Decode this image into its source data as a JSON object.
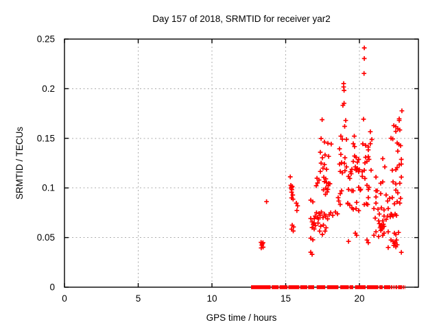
{
  "background_color": "#ffffff",
  "chart_data": {
    "type": "scatter",
    "title": "Day 157 of 2018, SRMTID for receiver yar2",
    "xlabel": "GPS time / hours",
    "ylabel": "SRMTID / TECUs",
    "xlim": [
      0,
      24
    ],
    "ylim": [
      0,
      0.25
    ],
    "xticks": [
      0,
      5,
      10,
      15,
      20
    ],
    "xtick_labels": [
      "0",
      "5",
      "10",
      "15",
      "20"
    ],
    "yticks": [
      0,
      0.05,
      0.1,
      0.15,
      0.2,
      0.25
    ],
    "ytick_labels": [
      "0",
      "0.05",
      "0.1",
      "0.15",
      "0.2",
      "0.25"
    ],
    "grid": true,
    "legend": "none",
    "frame_color": "#000000",
    "grid_color": "#ababab",
    "series": [
      {
        "name": "SRMTID",
        "marker": "plus",
        "marker_size_px": 7,
        "color": "#ff0000",
        "points": [
          [
            13.33,
            0.0452
          ],
          [
            13.46,
            0.0448
          ],
          [
            13.38,
            0.0424
          ],
          [
            13.34,
            0.0396
          ],
          [
            13.47,
            0.0403
          ],
          [
            13.41,
            0.0438
          ],
          [
            13.7,
            0.0862
          ],
          [
            15.31,
            0.1112
          ],
          [
            15.35,
            0.1026
          ],
          [
            15.44,
            0.1015
          ],
          [
            15.4,
            0.1008
          ],
          [
            15.37,
            0.0997
          ],
          [
            15.42,
            0.0983
          ],
          [
            15.4,
            0.0957
          ],
          [
            15.48,
            0.0929
          ],
          [
            15.4,
            0.09
          ],
          [
            15.5,
            0.0887
          ],
          [
            15.44,
            0.0625
          ],
          [
            15.53,
            0.0607
          ],
          [
            15.4,
            0.0585
          ],
          [
            15.51,
            0.0566
          ],
          [
            15.72,
            0.0847
          ],
          [
            15.81,
            0.082
          ],
          [
            15.76,
            0.0772
          ],
          [
            16.79,
            0.0659
          ],
          [
            16.93,
            0.0648
          ],
          [
            16.86,
            0.0633
          ],
          [
            17.02,
            0.062
          ],
          [
            16.79,
            0.0601
          ],
          [
            16.93,
            0.0586
          ],
          [
            16.7,
            0.0494
          ],
          [
            16.84,
            0.0477
          ],
          [
            16.7,
            0.0352
          ],
          [
            16.79,
            0.0331
          ],
          [
            16.7,
            0.0877
          ],
          [
            16.84,
            0.086
          ],
          [
            16.7,
            0.0693
          ],
          [
            16.93,
            0.069
          ],
          [
            17.12,
            0.1098
          ],
          [
            17.26,
            0.108
          ],
          [
            17.16,
            0.105
          ],
          [
            17.07,
            0.1022
          ],
          [
            17.4,
            0.125
          ],
          [
            17.63,
            0.1235
          ],
          [
            17.53,
            0.1199
          ],
          [
            17.77,
            0.1188
          ],
          [
            17.35,
            0.1166
          ],
          [
            17.58,
            0.1108
          ],
          [
            17.72,
            0.1091
          ],
          [
            17.63,
            0.1064
          ],
          [
            17.47,
            0.1688
          ],
          [
            17.4,
            0.1498
          ],
          [
            17.63,
            0.1463
          ],
          [
            17.86,
            0.145
          ],
          [
            18.09,
            0.1442
          ],
          [
            17.35,
            0.136
          ],
          [
            17.67,
            0.1332
          ],
          [
            17.91,
            0.1318
          ],
          [
            17.49,
            0.1304
          ],
          [
            17.77,
            0.1053
          ],
          [
            17.91,
            0.1046
          ],
          [
            18.0,
            0.1042
          ],
          [
            17.88,
            0.1022
          ],
          [
            17.72,
            0.0998
          ],
          [
            17.86,
            0.0985
          ],
          [
            17.56,
            0.0981
          ],
          [
            17.81,
            0.096
          ],
          [
            17.7,
            0.0936
          ],
          [
            17.0,
            0.0716
          ],
          [
            17.09,
            0.075
          ],
          [
            17.16,
            0.0702
          ],
          [
            17.26,
            0.0743
          ],
          [
            17.33,
            0.0723
          ],
          [
            17.42,
            0.0757
          ],
          [
            17.53,
            0.0702
          ],
          [
            17.63,
            0.0737
          ],
          [
            17.72,
            0.0716
          ],
          [
            17.84,
            0.0688
          ],
          [
            17.95,
            0.073
          ],
          [
            17.19,
            0.0646
          ],
          [
            17.37,
            0.0613
          ],
          [
            17.56,
            0.0626
          ],
          [
            17.74,
            0.0599
          ],
          [
            17.3,
            0.0565
          ],
          [
            17.49,
            0.0531
          ],
          [
            17.67,
            0.0565
          ],
          [
            17.23,
            0.0688
          ],
          [
            18.05,
            0.075
          ],
          [
            18.19,
            0.0723
          ],
          [
            18.93,
            0.2052
          ],
          [
            18.93,
            0.2018
          ],
          [
            18.96,
            0.1983
          ],
          [
            18.96,
            0.1853
          ],
          [
            18.88,
            0.1832
          ],
          [
            19.07,
            0.168
          ],
          [
            19.0,
            0.162
          ],
          [
            18.74,
            0.1522
          ],
          [
            18.84,
            0.149
          ],
          [
            19.12,
            0.1488
          ],
          [
            18.65,
            0.1394
          ],
          [
            18.74,
            0.1338
          ],
          [
            19.02,
            0.1304
          ],
          [
            18.79,
            0.125
          ],
          [
            19.12,
            0.1212
          ],
          [
            18.65,
            0.124
          ],
          [
            18.79,
            0.1255
          ],
          [
            18.98,
            0.1247
          ],
          [
            18.7,
            0.1166
          ],
          [
            18.84,
            0.1152
          ],
          [
            19.02,
            0.1173
          ],
          [
            19.4,
            0.1163
          ],
          [
            19.49,
            0.1188
          ],
          [
            19.44,
            0.1143
          ],
          [
            18.79,
            0.0971
          ],
          [
            18.7,
            0.0943
          ],
          [
            19.21,
            0.084
          ],
          [
            19.35,
            0.0826
          ],
          [
            18.37,
            0.0757
          ],
          [
            18.51,
            0.0739
          ],
          [
            18.6,
            0.0868
          ],
          [
            18.7,
            0.0833
          ],
          [
            18.56,
            0.0902
          ],
          [
            20.33,
            0.2411
          ],
          [
            20.33,
            0.2304
          ],
          [
            20.31,
            0.2153
          ],
          [
            20.28,
            0.1693
          ],
          [
            20.74,
            0.1566
          ],
          [
            19.65,
            0.1522
          ],
          [
            19.58,
            0.1446
          ],
          [
            19.67,
            0.1417
          ],
          [
            20.23,
            0.1444
          ],
          [
            20.42,
            0.1429
          ],
          [
            20.6,
            0.1412
          ],
          [
            20.74,
            0.1446
          ],
          [
            20.84,
            0.1488
          ],
          [
            20.6,
            0.1384
          ],
          [
            19.67,
            0.1322
          ],
          [
            19.77,
            0.1309
          ],
          [
            19.95,
            0.1288
          ],
          [
            19.58,
            0.1267
          ],
          [
            19.86,
            0.126
          ],
          [
            20.42,
            0.1309
          ],
          [
            20.6,
            0.1315
          ],
          [
            20.65,
            0.1288
          ],
          [
            20.51,
            0.1267
          ],
          [
            20.37,
            0.1253
          ],
          [
            19.72,
            0.1212
          ],
          [
            19.86,
            0.1198
          ],
          [
            20.0,
            0.1184
          ],
          [
            19.77,
            0.1178
          ],
          [
            19.95,
            0.1164
          ],
          [
            19.81,
            0.1191
          ],
          [
            20.79,
            0.1178
          ],
          [
            20.19,
            0.1164
          ],
          [
            20.33,
            0.1178
          ],
          [
            20.19,
            0.1116
          ],
          [
            20.37,
            0.1095
          ],
          [
            21.12,
            0.1109
          ],
          [
            20.51,
            0.1026
          ],
          [
            20.65,
            0.1006
          ],
          [
            19.95,
            0.1006
          ],
          [
            20.09,
            0.0985
          ],
          [
            21.12,
            0.0971
          ],
          [
            19.26,
            0.0985
          ],
          [
            19.35,
            0.1095
          ],
          [
            19.26,
            0.1116
          ],
          [
            19.49,
            0.0971
          ],
          [
            19.58,
            0.0971
          ],
          [
            20.05,
            0.0978
          ],
          [
            20.6,
            0.0985
          ],
          [
            20.6,
            0.0902
          ],
          [
            21.12,
            0.0909
          ],
          [
            19.21,
            0.0847
          ],
          [
            19.81,
            0.0854
          ],
          [
            20.33,
            0.0833
          ],
          [
            20.47,
            0.084
          ],
          [
            20.56,
            0.0833
          ],
          [
            21.12,
            0.0847
          ],
          [
            19.49,
            0.0799
          ],
          [
            19.58,
            0.0785
          ],
          [
            19.77,
            0.0792
          ],
          [
            19.95,
            0.0771
          ],
          [
            19.72,
            0.0544
          ],
          [
            19.81,
            0.0523
          ],
          [
            19.26,
            0.0461
          ],
          [
            20.51,
            0.0475
          ],
          [
            20.6,
            0.0448
          ],
          [
            20.98,
            0.0792
          ],
          [
            21.26,
            0.0785
          ],
          [
            21.49,
            0.0799
          ],
          [
            21.67,
            0.0778
          ],
          [
            21.95,
            0.0792
          ],
          [
            21.35,
            0.0737
          ],
          [
            21.67,
            0.0716
          ],
          [
            21.91,
            0.0716
          ],
          [
            21.07,
            0.0696
          ],
          [
            21.3,
            0.0668
          ],
          [
            21.58,
            0.0668
          ],
          [
            21.81,
            0.0682
          ],
          [
            21.35,
            0.064
          ],
          [
            21.49,
            0.0627
          ],
          [
            21.63,
            0.0634
          ],
          [
            21.44,
            0.0613
          ],
          [
            21.58,
            0.0606
          ],
          [
            21.4,
            0.0599
          ],
          [
            21.53,
            0.0585
          ],
          [
            21.67,
            0.0613
          ],
          [
            21.12,
            0.0558
          ],
          [
            21.44,
            0.0572
          ],
          [
            21.67,
            0.0544
          ],
          [
            21.95,
            0.0558
          ],
          [
            20.98,
            0.0523
          ],
          [
            21.3,
            0.051
          ],
          [
            21.58,
            0.0523
          ],
          [
            21.44,
            0.1047
          ],
          [
            21.58,
            0.1061
          ],
          [
            21.58,
            0.1295
          ],
          [
            21.72,
            0.1212
          ],
          [
            21.21,
            0.0971
          ],
          [
            21.44,
            0.0943
          ],
          [
            21.81,
            0.0929
          ],
          [
            22.05,
            0.0895
          ],
          [
            22.88,
            0.1777
          ],
          [
            22.7,
            0.1696
          ],
          [
            22.7,
            0.168
          ],
          [
            22.33,
            0.1628
          ],
          [
            22.47,
            0.1618
          ],
          [
            22.6,
            0.1598
          ],
          [
            22.74,
            0.1584
          ],
          [
            22.47,
            0.157
          ],
          [
            22.14,
            0.1501
          ],
          [
            22.26,
            0.1494
          ],
          [
            22.56,
            0.1453
          ],
          [
            22.67,
            0.1439
          ],
          [
            22.79,
            0.1426
          ],
          [
            22.6,
            0.1371
          ],
          [
            22.84,
            0.1288
          ],
          [
            22.23,
            0.1178
          ],
          [
            22.47,
            0.1184
          ],
          [
            22.56,
            0.1205
          ],
          [
            22.7,
            0.1233
          ],
          [
            22.84,
            0.124
          ],
          [
            22.28,
            0.1061
          ],
          [
            22.47,
            0.104
          ],
          [
            22.84,
            0.1109
          ],
          [
            22.74,
            0.1047
          ],
          [
            21.91,
            0.0868
          ],
          [
            22.23,
            0.0902
          ],
          [
            22.79,
            0.0895
          ],
          [
            22.37,
            0.084
          ],
          [
            22.56,
            0.0861
          ],
          [
            22.74,
            0.0847
          ],
          [
            22.47,
            0.0978
          ],
          [
            22.6,
            0.095
          ],
          [
            22.14,
            0.0737
          ],
          [
            22.28,
            0.0716
          ],
          [
            22.19,
            0.073
          ],
          [
            22.09,
            0.0709
          ],
          [
            22.42,
            0.0737
          ],
          [
            22.51,
            0.0723
          ],
          [
            22.14,
            0.0475
          ],
          [
            22.28,
            0.0461
          ],
          [
            22.37,
            0.0441
          ],
          [
            22.51,
            0.0475
          ],
          [
            22.42,
            0.0455
          ],
          [
            22.56,
            0.0427
          ],
          [
            22.33,
            0.042
          ],
          [
            22.47,
            0.0406
          ],
          [
            21.95,
            0.0399
          ],
          [
            22.84,
            0.0351
          ],
          [
            22.37,
            0.0544
          ],
          [
            22.47,
            0.053
          ],
          [
            22.65,
            0.0551
          ]
        ],
        "zero_line_segments": [
          [
            12.65,
            13.98
          ],
          [
            14.05,
            14.52
          ],
          [
            14.58,
            15.12
          ],
          [
            15.18,
            15.92
          ],
          [
            15.98,
            16.46
          ],
          [
            16.52,
            16.93
          ],
          [
            17.1,
            17.68
          ],
          [
            17.8,
            18.57
          ],
          [
            18.7,
            19.28
          ],
          [
            19.33,
            19.58
          ],
          [
            19.7,
            20.42
          ],
          [
            20.5,
            21.28
          ],
          [
            21.35,
            21.58
          ],
          [
            21.66,
            22.1
          ],
          [
            22.14,
            22.24
          ],
          [
            22.3,
            22.38
          ],
          [
            22.44,
            22.56
          ],
          [
            22.62,
            22.9
          ],
          [
            22.95,
            23.02
          ],
          [
            23.06,
            23.1
          ]
        ]
      }
    ]
  }
}
